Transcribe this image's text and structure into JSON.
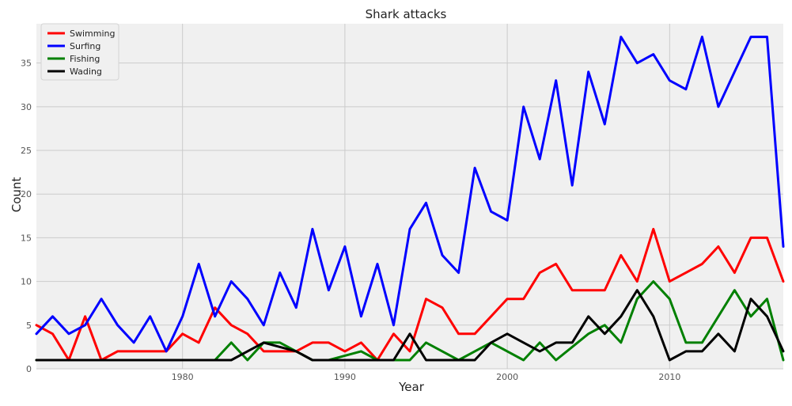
{
  "chart_data": {
    "type": "line",
    "title": "Shark attacks",
    "xlabel": "Year",
    "ylabel": "Count",
    "xlim": [
      1971,
      2017
    ],
    "ylim": [
      0,
      39.5
    ],
    "x_ticks": [
      1980,
      1990,
      2000,
      2010
    ],
    "y_ticks": [
      0,
      5,
      10,
      15,
      20,
      25,
      30,
      35
    ],
    "grid": true,
    "legend_position": "top-left",
    "x": [
      1971,
      1972,
      1973,
      1974,
      1975,
      1976,
      1977,
      1978,
      1979,
      1980,
      1981,
      1982,
      1983,
      1984,
      1985,
      1986,
      1987,
      1988,
      1989,
      1990,
      1991,
      1992,
      1993,
      1994,
      1995,
      1996,
      1997,
      1998,
      1999,
      2000,
      2001,
      2002,
      2003,
      2004,
      2005,
      2006,
      2007,
      2008,
      2009,
      2010,
      2011,
      2012,
      2013,
      2014,
      2015,
      2016,
      2017
    ],
    "series": [
      {
        "name": "Swimming",
        "color": "#ff0000",
        "values": [
          5,
          4,
          1,
          6,
          1,
          2,
          2,
          2,
          2,
          4,
          3,
          7,
          5,
          4,
          2,
          2,
          2,
          3,
          3,
          2,
          3,
          1,
          4,
          2,
          8,
          7,
          4,
          4,
          6,
          8,
          8,
          11,
          12,
          9,
          9,
          9,
          13,
          10,
          16,
          10,
          11,
          12,
          14,
          11,
          15,
          15,
          10
        ]
      },
      {
        "name": "Surfing",
        "color": "#0000ff",
        "values": [
          4,
          6,
          4,
          5,
          8,
          5,
          3,
          6,
          2,
          6,
          12,
          6,
          10,
          8,
          5,
          11,
          7,
          16,
          9,
          14,
          6,
          12,
          5,
          16,
          19,
          13,
          11,
          23,
          18,
          17,
          30,
          24,
          33,
          21,
          34,
          28,
          38,
          35,
          36,
          33,
          32,
          38,
          30,
          34,
          38,
          38,
          14
        ]
      },
      {
        "name": "Fishing",
        "color": "#008000",
        "values": [
          1,
          1,
          1,
          1,
          1,
          1,
          1,
          1,
          1,
          1,
          1,
          1,
          3,
          1,
          3,
          3,
          2,
          1,
          1,
          1.5,
          2,
          1,
          1,
          1,
          3,
          2,
          1,
          2,
          3,
          2,
          1,
          3,
          1,
          2.5,
          4,
          5,
          3,
          8,
          10,
          8,
          3,
          3,
          6,
          9,
          6,
          8,
          1
        ]
      },
      {
        "name": "Wading",
        "color": "#000000",
        "values": [
          1,
          1,
          1,
          1,
          1,
          1,
          1,
          1,
          1,
          1,
          1,
          1,
          1,
          2,
          3,
          2.5,
          2,
          1,
          1,
          1,
          1,
          1,
          1,
          4,
          1,
          1,
          1,
          1,
          3,
          4,
          3,
          2,
          3,
          3,
          6,
          4,
          6,
          9,
          6,
          1,
          2,
          2,
          4,
          2,
          8,
          6,
          2
        ]
      }
    ]
  }
}
